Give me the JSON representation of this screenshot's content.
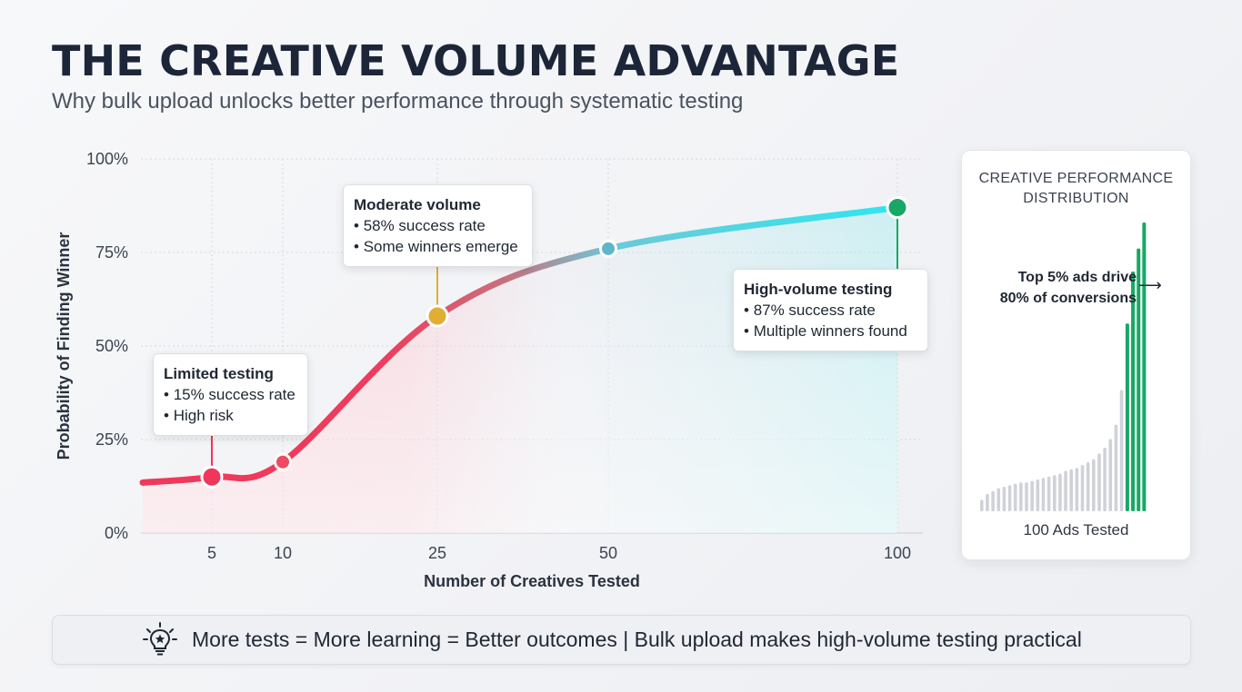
{
  "header": {
    "title": "THE CREATIVE VOLUME ADVANTAGE",
    "subtitle": "Why bulk upload unlocks better performance through systematic testing"
  },
  "chart_data": [
    {
      "type": "line",
      "title": "",
      "xlabel": "Number of Creatives Tested",
      "ylabel": "Probability of Finding Winner",
      "x_ticks": [
        5,
        10,
        25,
        50,
        100
      ],
      "y_ticks": [
        "0%",
        "25%",
        "50%",
        "75%",
        "100%"
      ],
      "ylim": [
        0,
        100
      ],
      "grid": true,
      "gradient_colors": [
        "#f0385a",
        "#2fe6f0"
      ],
      "series": [
        {
          "x": [
            1,
            5,
            10,
            25,
            50,
            100
          ],
          "y": [
            13.5,
            15,
            19,
            58,
            76,
            87
          ]
        }
      ],
      "markers": [
        {
          "x": 5,
          "y": 15,
          "color": "#f0365a"
        },
        {
          "x": 10,
          "y": 19,
          "color": "#ee4a63"
        },
        {
          "x": 25,
          "y": 58,
          "color": "#e2ad35"
        },
        {
          "x": 50,
          "y": 76,
          "color": "#5db6cc"
        },
        {
          "x": 100,
          "y": 87,
          "color": "#17a865"
        }
      ],
      "annotations": [
        {
          "title": "Limited testing",
          "lines": [
            "15% success rate",
            "High risk"
          ]
        },
        {
          "title": "Moderate volume",
          "lines": [
            "58% success rate",
            "Some winners emerge"
          ]
        },
        {
          "title": "High-volume testing",
          "lines": [
            "87% success rate",
            "Multiple winners found"
          ]
        }
      ]
    },
    {
      "type": "bar",
      "title": "CREATIVE PERFORMANCE DISTRIBUTION",
      "xlabel": "100 Ads Tested",
      "annotation": "Top 5% ads drive 80% of conversions",
      "colors": {
        "regular": "#cfd2d8",
        "top": "#17a865"
      },
      "values": [
        4,
        6,
        7,
        8,
        8.5,
        9,
        9.5,
        10,
        10,
        10.5,
        11,
        11.5,
        12,
        12.5,
        13,
        14,
        14.5,
        15,
        16,
        17,
        18,
        20,
        22,
        25,
        30,
        42,
        65,
        83,
        91,
        100
      ],
      "top_count": 4
    }
  ],
  "panel": {
    "title_line1": "CREATIVE PERFORMANCE",
    "title_line2": "DISTRIBUTION",
    "note_line1": "Top 5% ads drive",
    "note_line2": "80% of conversions",
    "arrow": "⟶",
    "footer": "100 Ads Tested"
  },
  "banner": {
    "icon": "lightbulb-icon",
    "text": "More tests = More learning = Better outcomes | Bulk upload makes high-volume testing practical"
  }
}
